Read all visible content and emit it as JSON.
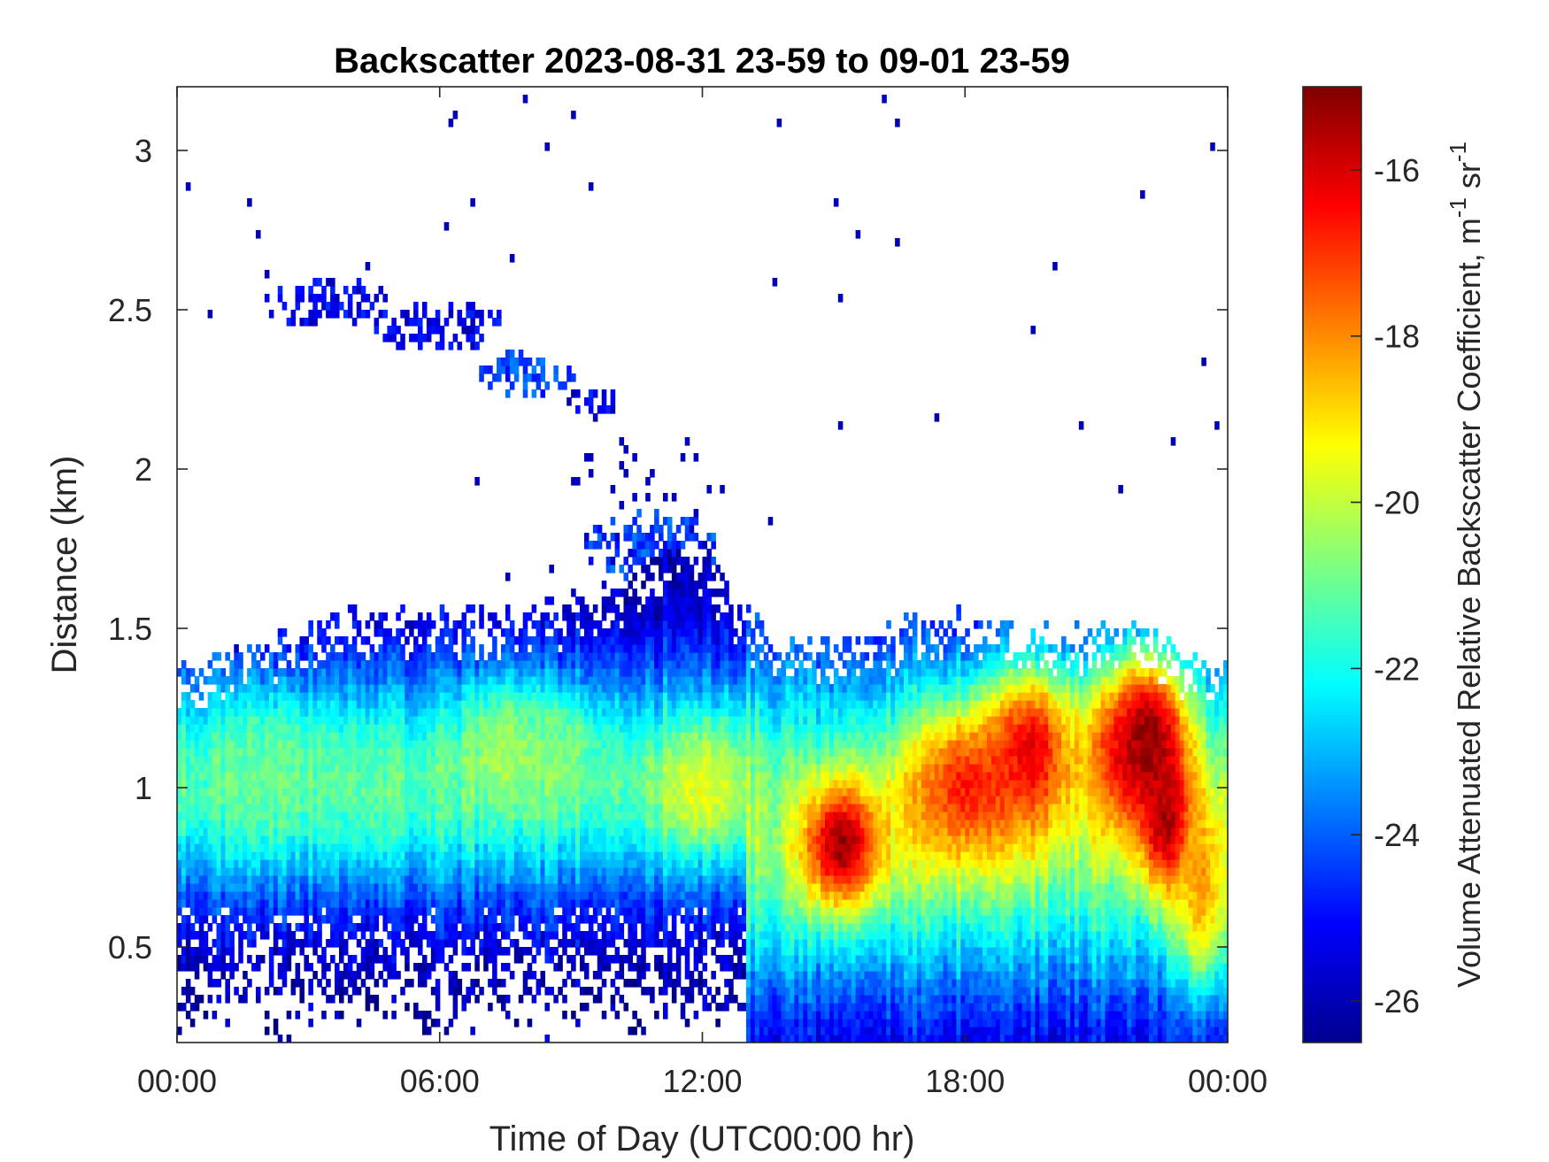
{
  "chart_data": {
    "type": "heatmap",
    "title": "Backscatter 2023-08-31 23-59 to 09-01 23-59",
    "xlabel": "Time of Day (UTC00:00 hr)",
    "ylabel": "Distance (km)",
    "colorbar_label": "Volume Attenuated Relative Backscatter Coefficient, m",
    "colorbar_unit_exp1": "-1",
    "colorbar_unit_mid": " sr",
    "colorbar_unit_exp2": "-1",
    "x_hours_range": [
      0,
      24
    ],
    "ylim": [
      0.2,
      3.2
    ],
    "color_range": [
      -26.5,
      -15
    ],
    "colormap": "jet",
    "x_ticks": [
      {
        "hour": 0,
        "label": "00:00"
      },
      {
        "hour": 6,
        "label": "06:00"
      },
      {
        "hour": 12,
        "label": "12:00"
      },
      {
        "hour": 18,
        "label": "18:00"
      },
      {
        "hour": 24,
        "label": "00:00"
      }
    ],
    "y_ticks": [
      {
        "value": 0.5,
        "label": "0.5"
      },
      {
        "value": 1,
        "label": "1"
      },
      {
        "value": 1.5,
        "label": "1.5"
      },
      {
        "value": 2,
        "label": "2"
      },
      {
        "value": 2.5,
        "label": "2.5"
      },
      {
        "value": 3,
        "label": "3"
      }
    ],
    "colorbar_ticks": [
      {
        "value": -26,
        "label": "-26"
      },
      {
        "value": -24,
        "label": "-24"
      },
      {
        "value": -22,
        "label": "-22"
      },
      {
        "value": -20,
        "label": "-20"
      },
      {
        "value": -18,
        "label": "-18"
      },
      {
        "value": -16,
        "label": "-16"
      }
    ],
    "layer_top_km": [
      [
        0,
        1.38
      ],
      [
        1,
        1.4
      ],
      [
        2,
        1.45
      ],
      [
        4,
        1.55
      ],
      [
        6,
        1.55
      ],
      [
        8,
        1.55
      ],
      [
        10,
        1.62
      ],
      [
        11,
        1.75
      ],
      [
        12,
        1.75
      ],
      [
        13,
        1.55
      ],
      [
        14,
        1.45
      ],
      [
        16,
        1.5
      ],
      [
        18,
        1.55
      ],
      [
        20,
        1.48
      ],
      [
        22,
        1.52
      ],
      [
        23,
        1.4
      ],
      [
        24,
        1.4
      ]
    ],
    "intensity_blobs": [
      {
        "hour": 2.2,
        "km": 1.05,
        "w_hr": 1.2,
        "h_km": 0.2,
        "value": -21.0
      },
      {
        "hour": 4.5,
        "km": 1.0,
        "w_hr": 1.0,
        "h_km": 0.18,
        "value": -21.3
      },
      {
        "hour": 7.5,
        "km": 1.12,
        "w_hr": 1.0,
        "h_km": 0.2,
        "value": -20.3
      },
      {
        "hour": 8.8,
        "km": 1.1,
        "w_hr": 0.8,
        "h_km": 0.18,
        "value": -20.8
      },
      {
        "hour": 12.0,
        "km": 1.0,
        "w_hr": 1.1,
        "h_km": 0.18,
        "value": -19.5
      },
      {
        "hour": 15.2,
        "km": 0.82,
        "w_hr": 0.9,
        "h_km": 0.2,
        "value": -15.3
      },
      {
        "hour": 18.0,
        "km": 1.0,
        "w_hr": 1.5,
        "h_km": 0.25,
        "value": -16.8
      },
      {
        "hour": 19.5,
        "km": 1.12,
        "w_hr": 1.0,
        "h_km": 0.25,
        "value": -16.2
      },
      {
        "hour": 21.5,
        "km": 1.1,
        "w_hr": 1.0,
        "h_km": 0.25,
        "value": -17.6
      },
      {
        "hour": 22.2,
        "km": 1.15,
        "w_hr": 0.9,
        "h_km": 0.25,
        "value": -15.1
      },
      {
        "hour": 22.6,
        "km": 0.9,
        "w_hr": 0.6,
        "h_km": 0.22,
        "value": -15.4
      },
      {
        "hour": 23.4,
        "km": 0.7,
        "w_hr": 0.6,
        "h_km": 0.3,
        "value": -18.2
      }
    ],
    "upper_layer": [
      {
        "hour": 3.5,
        "km": 2.52,
        "w_hr": 1.5,
        "h_km": 0.08,
        "value": -25.2
      },
      {
        "hour": 6.0,
        "km": 2.45,
        "w_hr": 1.5,
        "h_km": 0.08,
        "value": -25.3
      },
      {
        "hour": 8.0,
        "km": 2.3,
        "w_hr": 1.2,
        "h_km": 0.07,
        "value": -24.3
      },
      {
        "hour": 9.5,
        "km": 2.2,
        "w_hr": 0.6,
        "h_km": 0.06,
        "value": -25.3
      },
      {
        "hour": 10.8,
        "km": 1.75,
        "w_hr": 1.5,
        "h_km": 0.12,
        "value": -24.3
      }
    ]
  }
}
